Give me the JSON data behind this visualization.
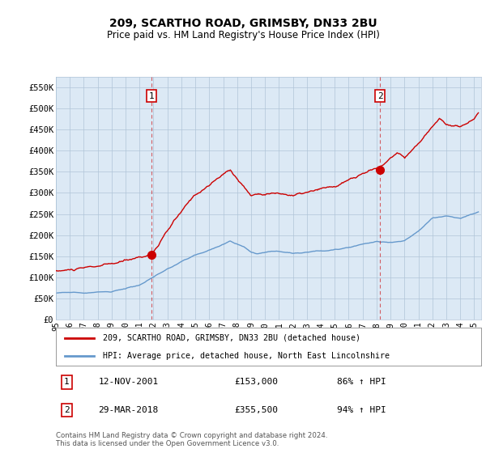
{
  "title": "209, SCARTHO ROAD, GRIMSBY, DN33 2BU",
  "subtitle": "Price paid vs. HM Land Registry's House Price Index (HPI)",
  "outer_bg_color": "#ffffff",
  "plot_bg_color": "#dce9f5",
  "red_line_color": "#cc0000",
  "blue_line_color": "#6699cc",
  "yticks": [
    0,
    50000,
    100000,
    150000,
    200000,
    250000,
    300000,
    350000,
    400000,
    450000,
    500000,
    550000
  ],
  "ytick_labels": [
    "£0",
    "£50K",
    "£100K",
    "£150K",
    "£200K",
    "£250K",
    "£300K",
    "£350K",
    "£400K",
    "£450K",
    "£500K",
    "£550K"
  ],
  "marker1_year": 2001.87,
  "marker1_price": 153000,
  "marker1_date": "12-NOV-2001",
  "marker1_pct": "86%",
  "marker2_year": 2018.25,
  "marker2_price": 355500,
  "marker2_date": "29-MAR-2018",
  "marker2_pct": "94%",
  "legend_entry1": "209, SCARTHO ROAD, GRIMSBY, DN33 2BU (detached house)",
  "legend_entry2": "HPI: Average price, detached house, North East Lincolnshire",
  "footnote": "Contains HM Land Registry data © Crown copyright and database right 2024.\nThis data is licensed under the Open Government Licence v3.0.",
  "xmin": 1995.0,
  "xmax": 2025.5,
  "ylim_max": 575000
}
